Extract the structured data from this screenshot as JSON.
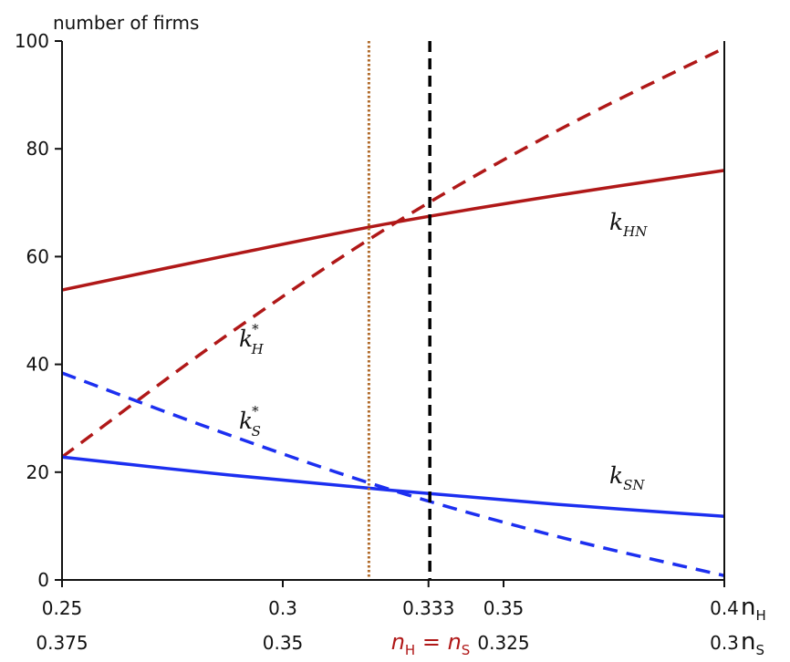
{
  "chart_data": {
    "type": "line",
    "ylabel": "number of firms",
    "ylim": [
      0,
      100
    ],
    "yticks": [
      "0",
      "20",
      "40",
      "60",
      "80",
      "100"
    ],
    "xlim": [
      0.25,
      0.4
    ],
    "xticks_top": [
      "0.25",
      "0.3",
      "0.333",
      "0.35",
      "0.4"
    ],
    "xticks_bottom": [
      "0.375",
      "0.35",
      "0.325",
      "0.3"
    ],
    "xticks_top_values": [
      0.25,
      0.3,
      0.333,
      0.35,
      0.4
    ],
    "xticks_bottom_positions": [
      0.25,
      0.3,
      0.35,
      0.4
    ],
    "x_axis_var_top": "n",
    "x_axis_var_top_sub": "H",
    "x_axis_var_bottom": "n",
    "x_axis_var_bottom_sub": "S",
    "equality_label": "n_H = n_S",
    "x": [
      0.25,
      0.2875,
      0.325,
      0.3625,
      0.4
    ],
    "series": [
      {
        "name": "k_HN",
        "label": "k",
        "sub": "HN",
        "sup": "",
        "color": "#b01818",
        "dash": "solid",
        "values": [
          53.8,
          60.2,
          66.3,
          71.4,
          76.0
        ]
      },
      {
        "name": "k*_H",
        "label": "k",
        "sub": "H",
        "sup": "*",
        "color": "#b01818",
        "dash": "dashed",
        "values": [
          22.8,
          45.5,
          66.0,
          83.5,
          98.7
        ]
      },
      {
        "name": "k_SN",
        "label": "k",
        "sub": "SN",
        "sup": "",
        "color": "#1c2ff0",
        "dash": "solid",
        "values": [
          22.8,
          19.5,
          16.6,
          14.0,
          11.8
        ]
      },
      {
        "name": "k*_S",
        "label": "k",
        "sub": "S",
        "sup": "*",
        "color": "#1c2ff0",
        "dash": "dashed",
        "values": [
          38.4,
          27.0,
          16.6,
          8.0,
          0.8
        ]
      }
    ],
    "vlines": [
      {
        "name": "intersection-line",
        "x": 0.3195,
        "color": "#b06a2a",
        "dash": "dotted"
      },
      {
        "name": "equal-size-line",
        "x": 0.3333,
        "color": "#000000",
        "dash": "dashed"
      }
    ],
    "colors": {
      "axis": "#111111",
      "label_red": "#b01818"
    }
  }
}
